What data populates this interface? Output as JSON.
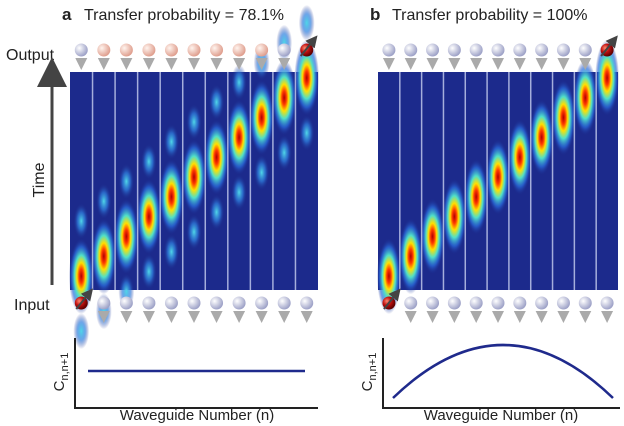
{
  "panels": [
    {
      "label": "a",
      "title": "Transfer probability = 78.1%",
      "y_axis_label": "C",
      "y_axis_subscript": "n,n+1",
      "x_axis_label": "Waveguide Number (n)"
    },
    {
      "label": "b",
      "title": "Transfer probability = 100%",
      "y_axis_label": "C",
      "y_axis_subscript": "n,n+1",
      "x_axis_label": "Waveguide Number (n)"
    }
  ],
  "output_label": "Output",
  "time_label": "Time",
  "input_label": "Input"
}
